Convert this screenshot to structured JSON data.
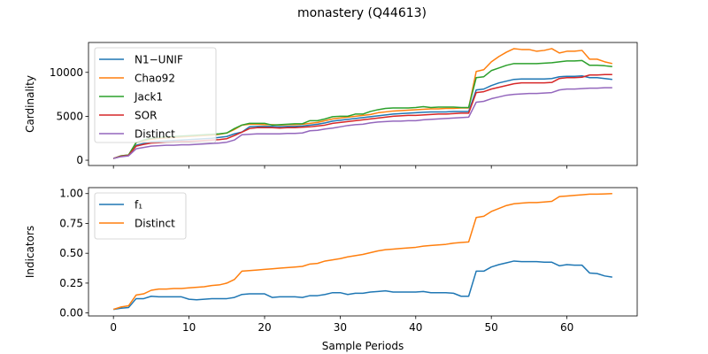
{
  "figure": {
    "title": "monastery (Q44613)"
  },
  "chart_data": [
    {
      "type": "line",
      "ylabel": "Cardinality",
      "xlabel": "",
      "xlim": [
        -3.3,
        69.3
      ],
      "ylim": [
        -600,
        13400
      ],
      "yticks": [
        0,
        5000,
        10000
      ],
      "xticks": [
        0,
        10,
        20,
        30,
        40,
        50,
        60
      ],
      "show_x_tick_labels": false,
      "legend_position": "upper left",
      "grid": false,
      "series": [
        {
          "name": "N1−UNIF",
          "color": "#1f77b4",
          "values": [
            200,
            450,
            550,
            1700,
            1900,
            2100,
            2150,
            2200,
            2250,
            2300,
            2350,
            2400,
            2450,
            2500,
            2600,
            2700,
            3000,
            3200,
            3800,
            3850,
            3850,
            3850,
            3800,
            3850,
            3850,
            3900,
            4000,
            4100,
            4250,
            4450,
            4550,
            4650,
            4750,
            4850,
            4950,
            5050,
            5150,
            5250,
            5300,
            5350,
            5400,
            5450,
            5500,
            5500,
            5500,
            5550,
            5550,
            5550,
            8000,
            8100,
            8500,
            8800,
            9000,
            9200,
            9250,
            9250,
            9250,
            9250,
            9300,
            9500,
            9550,
            9550,
            9600,
            9400,
            9400,
            9300,
            9200
          ]
        },
        {
          "name": "Chao92",
          "color": "#ff7f0e",
          "values": [
            200,
            500,
            600,
            2000,
            2200,
            2400,
            2500,
            2550,
            2600,
            2650,
            2700,
            2750,
            2800,
            2850,
            2950,
            3100,
            3500,
            4000,
            4100,
            4100,
            4050,
            4050,
            4000,
            4050,
            4050,
            4100,
            4200,
            4300,
            4500,
            4700,
            4800,
            4900,
            5000,
            5100,
            5200,
            5400,
            5500,
            5600,
            5650,
            5700,
            5750,
            5800,
            5850,
            5850,
            5900,
            5900,
            5950,
            5950,
            10100,
            10300,
            11200,
            11800,
            12300,
            12700,
            12600,
            12600,
            12400,
            12500,
            12700,
            12200,
            12400,
            12400,
            12500,
            11500,
            11500,
            11200,
            11000
          ]
        },
        {
          "name": "Jack1",
          "color": "#2ca02c",
          "values": [
            200,
            500,
            600,
            2000,
            2300,
            2500,
            2600,
            2650,
            2700,
            2750,
            2800,
            2850,
            2900,
            2950,
            3000,
            3100,
            3600,
            4000,
            4200,
            4200,
            4200,
            4000,
            4050,
            4100,
            4150,
            4150,
            4500,
            4500,
            4700,
            4950,
            5000,
            5000,
            5250,
            5250,
            5550,
            5750,
            5900,
            5950,
            5950,
            5950,
            6000,
            6100,
            6000,
            6050,
            6050,
            6050,
            6000,
            6000,
            9400,
            9500,
            10200,
            10500,
            10800,
            11000,
            11000,
            11000,
            11000,
            11050,
            11100,
            11200,
            11300,
            11300,
            11350,
            10800,
            10800,
            10750,
            10650
          ]
        },
        {
          "name": "SOR",
          "color": "#d62728",
          "values": [
            200,
            450,
            550,
            1600,
            1800,
            1950,
            2000,
            2050,
            2100,
            2150,
            2150,
            2200,
            2250,
            2300,
            2350,
            2450,
            2800,
            3200,
            3600,
            3700,
            3700,
            3700,
            3650,
            3700,
            3700,
            3750,
            3800,
            3900,
            4000,
            4200,
            4300,
            4400,
            4500,
            4600,
            4700,
            4800,
            4900,
            5000,
            5050,
            5100,
            5100,
            5150,
            5200,
            5250,
            5250,
            5300,
            5350,
            5350,
            7700,
            7800,
            8100,
            8300,
            8500,
            8700,
            8800,
            8800,
            8800,
            8800,
            8850,
            9300,
            9400,
            9400,
            9450,
            9700,
            9700,
            9750,
            9750
          ]
        },
        {
          "name": "Distinct",
          "color": "#9467bd",
          "values": [
            200,
            400,
            500,
            1300,
            1450,
            1600,
            1650,
            1700,
            1700,
            1750,
            1750,
            1800,
            1850,
            1900,
            1950,
            2050,
            2300,
            2900,
            2950,
            3000,
            3000,
            3000,
            3000,
            3050,
            3050,
            3100,
            3350,
            3400,
            3550,
            3650,
            3800,
            3950,
            4050,
            4100,
            4250,
            4350,
            4400,
            4450,
            4450,
            4500,
            4500,
            4600,
            4650,
            4700,
            4750,
            4800,
            4850,
            4900,
            6600,
            6700,
            7000,
            7200,
            7400,
            7500,
            7550,
            7600,
            7600,
            7650,
            7700,
            8000,
            8100,
            8100,
            8150,
            8200,
            8200,
            8250,
            8250
          ]
        }
      ]
    },
    {
      "type": "line",
      "ylabel": "Indicators",
      "xlabel": "Sample Periods",
      "xlim": [
        -3.3,
        69.3
      ],
      "ylim": [
        -0.025,
        1.05
      ],
      "yticks": [
        0.0,
        0.25,
        0.5,
        0.75,
        1.0
      ],
      "ytick_labels": [
        "0.00",
        "0.25",
        "0.50",
        "0.75",
        "1.00"
      ],
      "xticks": [
        0,
        10,
        20,
        30,
        40,
        50,
        60
      ],
      "xtick_labels": [
        "0",
        "10",
        "20",
        "30",
        "40",
        "50",
        "60"
      ],
      "legend_position": "upper left",
      "grid": false,
      "series": [
        {
          "name": "f₁",
          "color": "#1f77b4",
          "values": [
            0.03,
            0.04,
            0.045,
            0.12,
            0.12,
            0.14,
            0.135,
            0.135,
            0.135,
            0.135,
            0.115,
            0.11,
            0.115,
            0.12,
            0.12,
            0.12,
            0.13,
            0.155,
            0.16,
            0.16,
            0.16,
            0.13,
            0.135,
            0.135,
            0.135,
            0.13,
            0.145,
            0.145,
            0.155,
            0.17,
            0.17,
            0.155,
            0.165,
            0.165,
            0.175,
            0.18,
            0.185,
            0.175,
            0.175,
            0.175,
            0.175,
            0.18,
            0.17,
            0.17,
            0.17,
            0.165,
            0.14,
            0.14,
            0.35,
            0.35,
            0.385,
            0.405,
            0.42,
            0.435,
            0.43,
            0.43,
            0.43,
            0.425,
            0.425,
            0.395,
            0.405,
            0.4,
            0.4,
            0.335,
            0.33,
            0.31,
            0.3
          ]
        },
        {
          "name": "Distinct",
          "color": "#ff7f0e",
          "values": [
            0.03,
            0.05,
            0.06,
            0.15,
            0.16,
            0.19,
            0.2,
            0.2,
            0.205,
            0.205,
            0.21,
            0.215,
            0.22,
            0.23,
            0.235,
            0.25,
            0.28,
            0.35,
            0.355,
            0.36,
            0.365,
            0.37,
            0.375,
            0.38,
            0.385,
            0.39,
            0.41,
            0.415,
            0.435,
            0.445,
            0.455,
            0.47,
            0.48,
            0.49,
            0.505,
            0.52,
            0.53,
            0.535,
            0.54,
            0.545,
            0.55,
            0.56,
            0.565,
            0.57,
            0.575,
            0.585,
            0.59,
            0.595,
            0.8,
            0.81,
            0.85,
            0.875,
            0.9,
            0.915,
            0.92,
            0.925,
            0.925,
            0.93,
            0.935,
            0.975,
            0.98,
            0.985,
            0.99,
            0.995,
            0.995,
            0.997,
            1.0
          ]
        }
      ]
    }
  ]
}
